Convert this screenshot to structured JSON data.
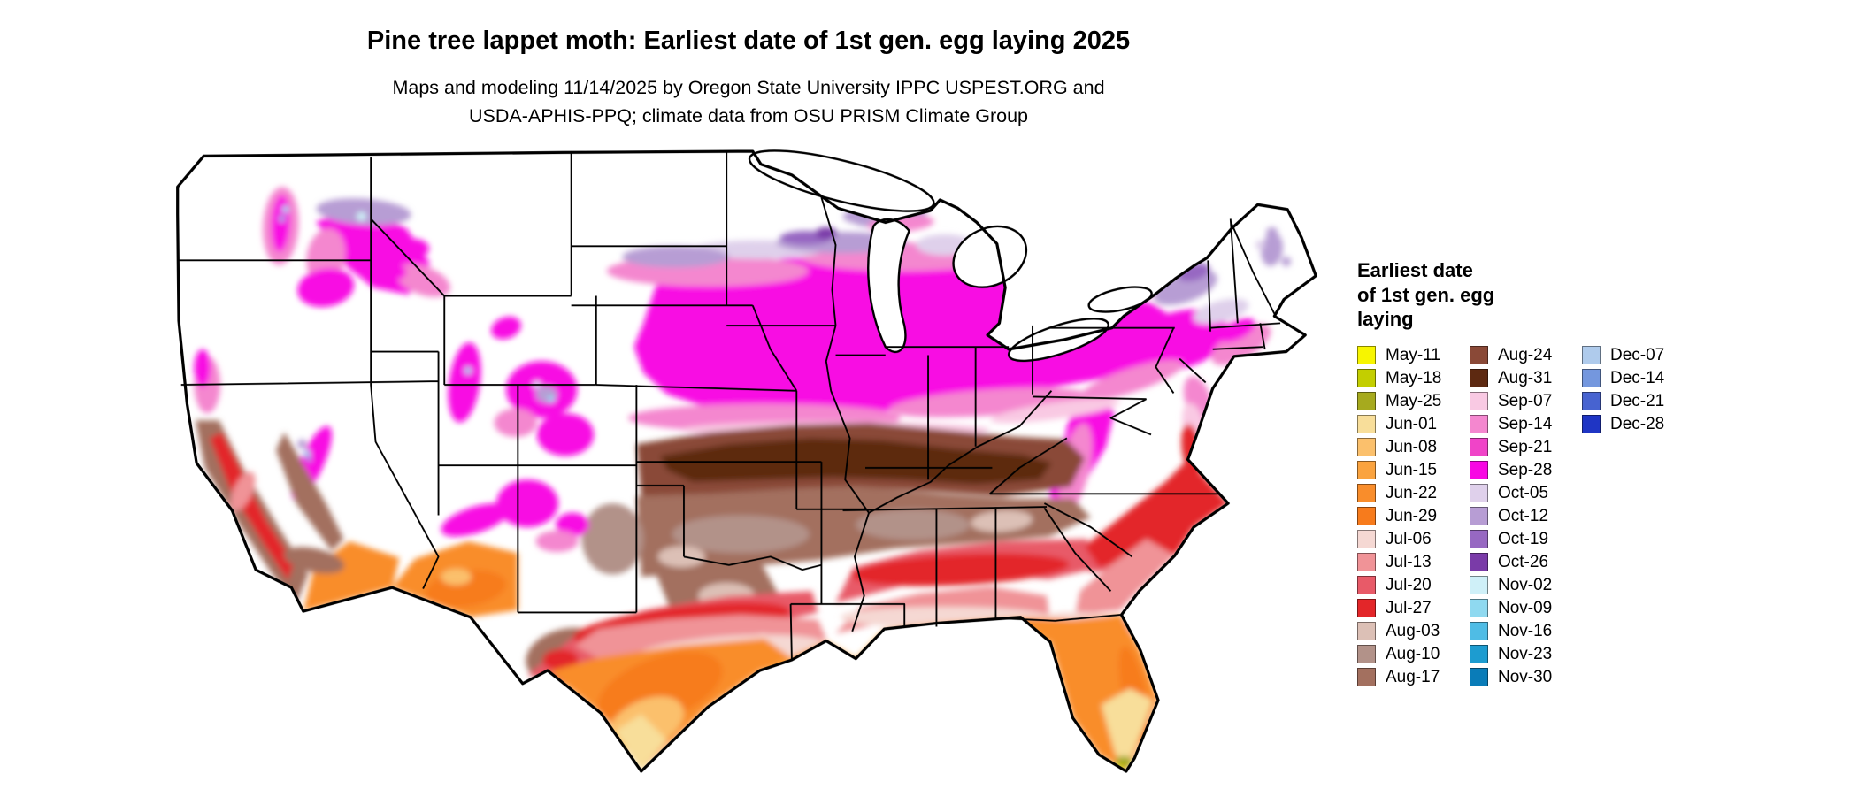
{
  "title": "Pine tree lappet moth: Earliest date of 1st gen. egg laying 2025",
  "subtitle_lines": [
    "Maps and modeling 11/14/2025 by Oregon State University IPPC USPEST.ORG and",
    "USDA-APHIS-PPQ; climate data from OSU PRISM Climate Group"
  ],
  "legend": {
    "title": "Earliest date\nof 1st gen. egg\nlaying",
    "columns": [
      [
        "May-11",
        "May-18",
        "May-25",
        "Jun-01",
        "Jun-08",
        "Jun-15",
        "Jun-22",
        "Jun-29",
        "Jul-06",
        "Jul-13",
        "Jul-20",
        "Jul-27",
        "Aug-03",
        "Aug-10",
        "Aug-17"
      ],
      [
        "Aug-24",
        "Aug-31",
        "Sep-07",
        "Sep-14",
        "Sep-21",
        "Sep-28",
        "Oct-05",
        "Oct-12",
        "Oct-19",
        "Oct-26",
        "Nov-02",
        "Nov-09",
        "Nov-16",
        "Nov-23",
        "Nov-30"
      ],
      [
        "Dec-07",
        "Dec-14",
        "Dec-21",
        "Dec-28"
      ]
    ]
  },
  "palette": {
    "May-11": "#F7F500",
    "May-18": "#C3CE00",
    "May-25": "#A6AA1E",
    "Jun-01": "#F8DE9A",
    "Jun-08": "#FBC06C",
    "Jun-15": "#FAA33F",
    "Jun-22": "#F98D2B",
    "Jun-29": "#F77B1C",
    "Jul-06": "#F5D8D3",
    "Jul-13": "#F09397",
    "Jul-20": "#E85A68",
    "Jul-27": "#E32629",
    "Aug-03": "#DCC0B6",
    "Aug-10": "#B29289",
    "Aug-17": "#A3705F",
    "Aug-24": "#8A4937",
    "Aug-31": "#5D2911",
    "Sep-07": "#F9C9E3",
    "Sep-14": "#F487CF",
    "Sep-21": "#F044C8",
    "Sep-28": "#F807E3",
    "Oct-05": "#DFD0EB",
    "Oct-12": "#B79DD4",
    "Oct-19": "#9768C2",
    "Oct-26": "#7A3BA8",
    "Nov-02": "#CFF0F8",
    "Nov-09": "#8FD9F0",
    "Nov-16": "#4FBCE5",
    "Nov-23": "#1D9CD0",
    "Nov-30": "#0A7CB8",
    "Dec-07": "#AFCBEC",
    "Dec-14": "#7497DE",
    "Dec-21": "#4763D0",
    "Dec-28": "#1F35C4"
  },
  "map": {
    "border_color": "#000000",
    "water_color": "#ffffff",
    "land_color": "#ffffff"
  }
}
